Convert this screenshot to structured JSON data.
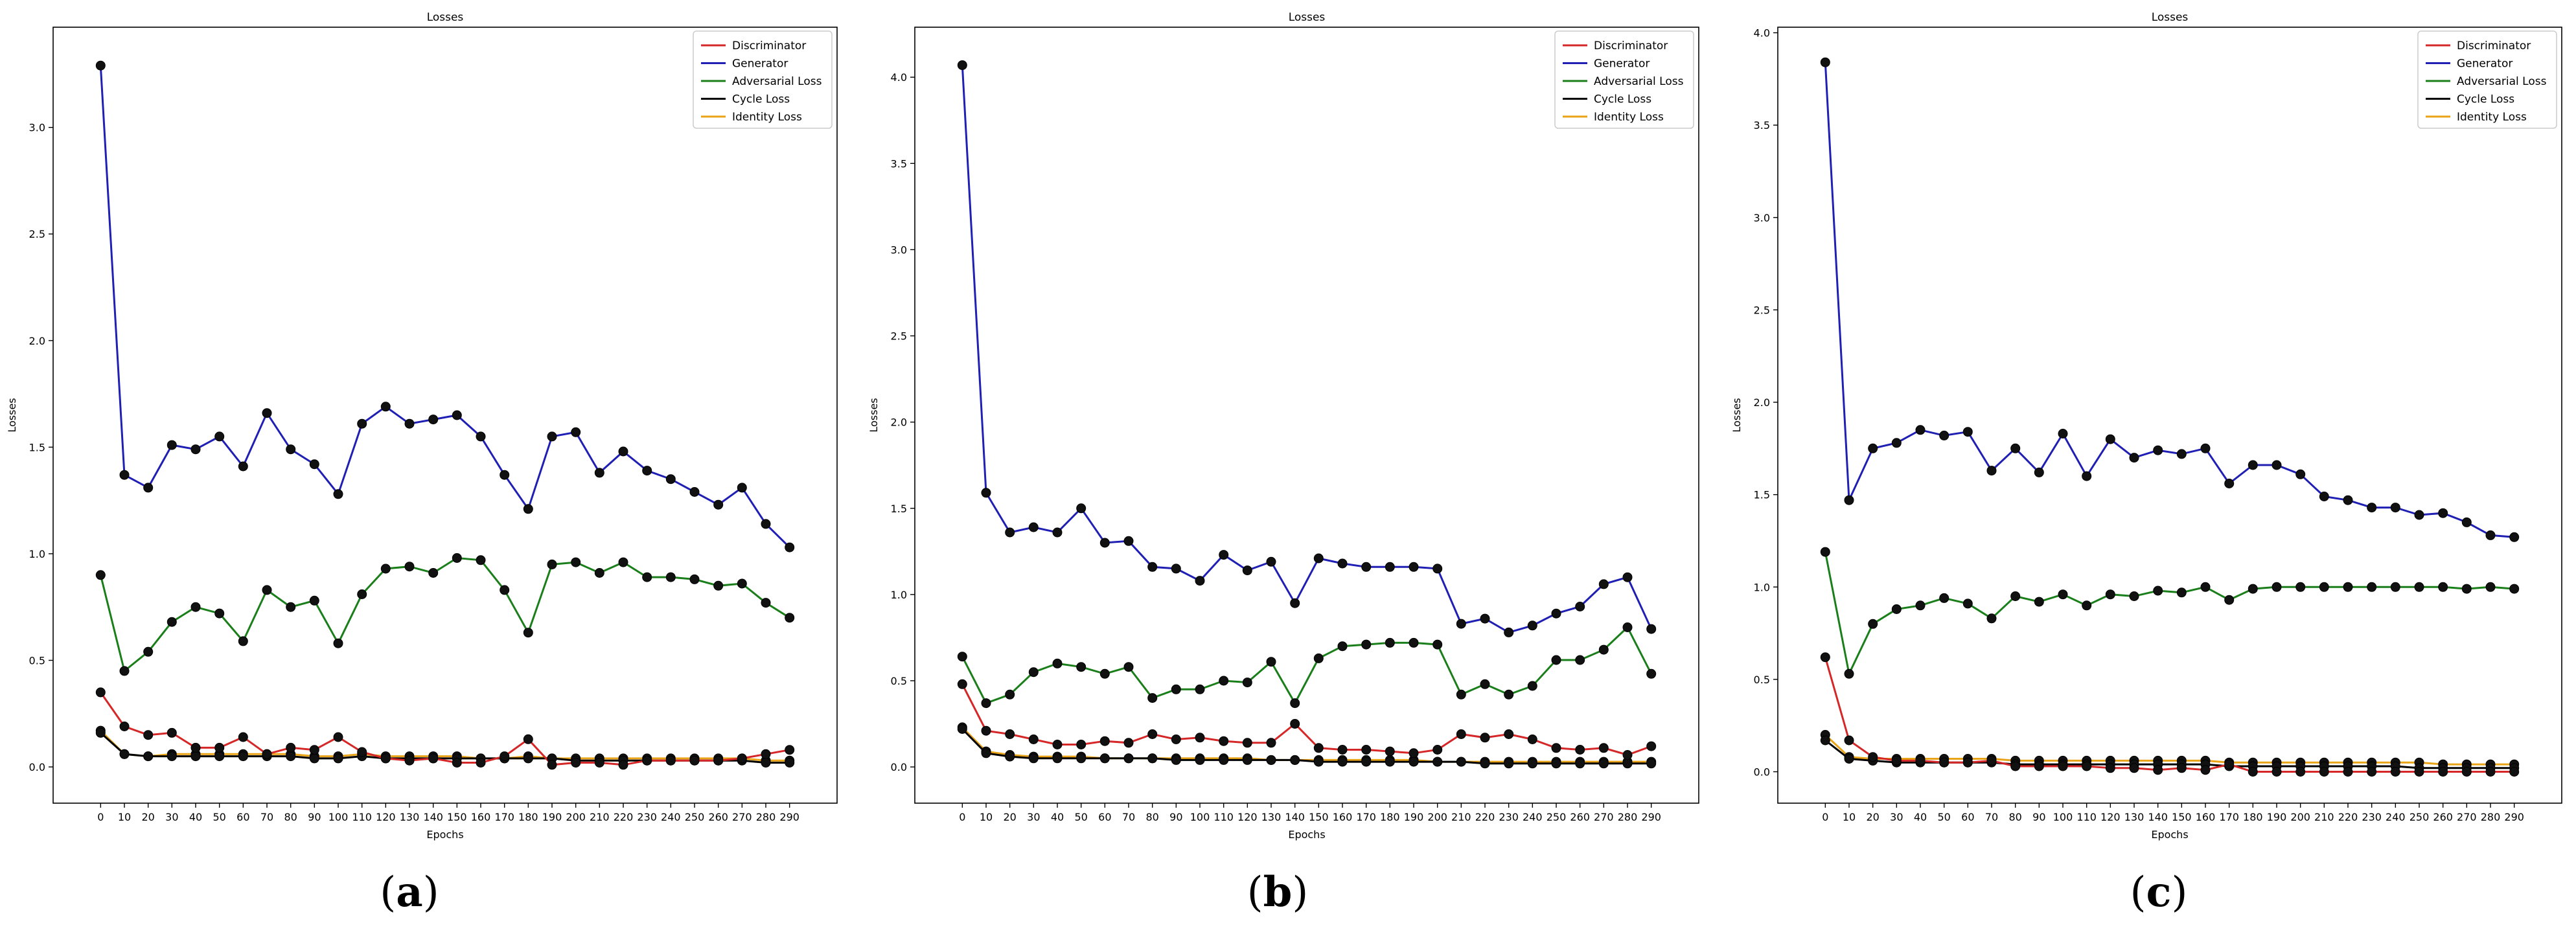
{
  "captions": [
    "(a)",
    "(b)",
    "(c)"
  ],
  "caption_letters": [
    "a",
    "b",
    "c"
  ],
  "legend_entries": [
    "Discriminator",
    "Generator",
    "Adversarial Loss",
    "Cycle Loss",
    "Identity Loss"
  ],
  "chart_data": [
    {
      "type": "line",
      "title": "Losses",
      "xlabel": "Epochs",
      "ylabel": "Losses",
      "legend": "top-right",
      "grid": false,
      "x": [
        0,
        10,
        20,
        30,
        40,
        50,
        60,
        70,
        80,
        90,
        100,
        110,
        120,
        130,
        140,
        150,
        160,
        170,
        180,
        190,
        200,
        210,
        220,
        230,
        240,
        250,
        260,
        270,
        280,
        290
      ],
      "xlim": [
        -20,
        310
      ],
      "ylim": [
        -0.17,
        3.47
      ],
      "yticks": [
        0.0,
        0.5,
        1.0,
        1.5,
        2.0,
        2.5,
        3.0
      ],
      "ytick_labels": [
        "0.0",
        "0.5",
        "1.0",
        "1.5",
        "2.0",
        "2.5",
        "3.0"
      ],
      "series": [
        {
          "name": "Discriminator",
          "color": "#d62728",
          "values": [
            0.35,
            0.19,
            0.15,
            0.16,
            0.09,
            0.09,
            0.14,
            0.06,
            0.09,
            0.08,
            0.14,
            0.07,
            0.04,
            0.03,
            0.04,
            0.02,
            0.02,
            0.05,
            0.13,
            0.01,
            0.02,
            0.02,
            0.01,
            0.03,
            0.03,
            0.03,
            0.03,
            0.04,
            0.06,
            0.08
          ]
        },
        {
          "name": "Generator",
          "color": "#1f1fb4",
          "values": [
            3.29,
            1.37,
            1.31,
            1.51,
            1.49,
            1.55,
            1.41,
            1.66,
            1.49,
            1.42,
            1.28,
            1.61,
            1.69,
            1.61,
            1.63,
            1.65,
            1.55,
            1.37,
            1.21,
            1.55,
            1.57,
            1.38,
            1.48,
            1.39,
            1.35,
            1.29,
            1.23,
            1.31,
            1.14,
            1.03
          ]
        },
        {
          "name": "Adversarial Loss",
          "color": "#1a7f1a",
          "values": [
            0.9,
            0.45,
            0.54,
            0.68,
            0.75,
            0.72,
            0.59,
            0.83,
            0.75,
            0.78,
            0.58,
            0.81,
            0.93,
            0.94,
            0.91,
            0.98,
            0.97,
            0.83,
            0.63,
            0.95,
            0.96,
            0.91,
            0.96,
            0.89,
            0.89,
            0.88,
            0.85,
            0.86,
            0.77,
            0.7
          ]
        },
        {
          "name": "Cycle Loss",
          "color": "#000000",
          "values": [
            0.16,
            0.06,
            0.05,
            0.05,
            0.05,
            0.05,
            0.05,
            0.05,
            0.05,
            0.04,
            0.04,
            0.05,
            0.04,
            0.04,
            0.04,
            0.04,
            0.04,
            0.04,
            0.04,
            0.04,
            0.03,
            0.03,
            0.03,
            0.03,
            0.03,
            0.03,
            0.03,
            0.03,
            0.02,
            0.02
          ]
        },
        {
          "name": "Identity Loss",
          "color": "#e8a317",
          "values": [
            0.17,
            0.06,
            0.05,
            0.06,
            0.06,
            0.06,
            0.06,
            0.06,
            0.06,
            0.05,
            0.05,
            0.06,
            0.05,
            0.05,
            0.05,
            0.05,
            0.04,
            0.04,
            0.05,
            0.04,
            0.04,
            0.04,
            0.04,
            0.04,
            0.04,
            0.04,
            0.04,
            0.04,
            0.03,
            0.03
          ]
        }
      ]
    },
    {
      "type": "line",
      "title": "Losses",
      "xlabel": "Epochs",
      "ylabel": "Losses",
      "legend": "top-right",
      "grid": false,
      "x": [
        0,
        10,
        20,
        30,
        40,
        50,
        60,
        70,
        80,
        90,
        100,
        110,
        120,
        130,
        140,
        150,
        160,
        170,
        180,
        190,
        200,
        210,
        220,
        230,
        240,
        250,
        260,
        270,
        280,
        290
      ],
      "xlim": [
        -20,
        310
      ],
      "ylim": [
        -0.21,
        4.29
      ],
      "yticks": [
        0.0,
        0.5,
        1.0,
        1.5,
        2.0,
        2.5,
        3.0,
        3.5,
        4.0
      ],
      "ytick_labels": [
        "0.0",
        "0.5",
        "1.0",
        "1.5",
        "2.0",
        "2.5",
        "3.0",
        "3.5",
        "4.0"
      ],
      "series": [
        {
          "name": "Discriminator",
          "color": "#d62728",
          "values": [
            0.48,
            0.21,
            0.19,
            0.16,
            0.13,
            0.13,
            0.15,
            0.14,
            0.19,
            0.16,
            0.17,
            0.15,
            0.14,
            0.14,
            0.25,
            0.11,
            0.1,
            0.1,
            0.09,
            0.08,
            0.1,
            0.19,
            0.17,
            0.19,
            0.16,
            0.11,
            0.1,
            0.11,
            0.07,
            0.12
          ]
        },
        {
          "name": "Generator",
          "color": "#1f1fb4",
          "values": [
            4.07,
            1.59,
            1.36,
            1.39,
            1.36,
            1.5,
            1.3,
            1.31,
            1.16,
            1.15,
            1.08,
            1.23,
            1.14,
            1.19,
            0.95,
            1.21,
            1.18,
            1.16,
            1.16,
            1.16,
            1.15,
            0.83,
            0.86,
            0.78,
            0.82,
            0.89,
            0.93,
            1.06,
            1.1,
            0.8
          ]
        },
        {
          "name": "Adversarial Loss",
          "color": "#1a7f1a",
          "values": [
            0.64,
            0.37,
            0.42,
            0.55,
            0.6,
            0.58,
            0.54,
            0.58,
            0.4,
            0.45,
            0.45,
            0.5,
            0.49,
            0.61,
            0.37,
            0.63,
            0.7,
            0.71,
            0.72,
            0.72,
            0.71,
            0.42,
            0.48,
            0.42,
            0.47,
            0.62,
            0.62,
            0.68,
            0.81,
            0.54
          ]
        },
        {
          "name": "Cycle Loss",
          "color": "#000000",
          "values": [
            0.22,
            0.08,
            0.06,
            0.05,
            0.05,
            0.05,
            0.05,
            0.05,
            0.05,
            0.04,
            0.04,
            0.04,
            0.04,
            0.04,
            0.04,
            0.03,
            0.03,
            0.03,
            0.03,
            0.03,
            0.03,
            0.03,
            0.02,
            0.02,
            0.02,
            0.02,
            0.02,
            0.02,
            0.02,
            0.02
          ]
        },
        {
          "name": "Identity Loss",
          "color": "#e8a317",
          "values": [
            0.23,
            0.09,
            0.07,
            0.06,
            0.06,
            0.06,
            0.05,
            0.05,
            0.05,
            0.05,
            0.05,
            0.05,
            0.05,
            0.04,
            0.04,
            0.04,
            0.04,
            0.04,
            0.04,
            0.04,
            0.03,
            0.03,
            0.03,
            0.03,
            0.03,
            0.03,
            0.03,
            0.03,
            0.03,
            0.03
          ]
        }
      ]
    },
    {
      "type": "line",
      "title": "Losses",
      "xlabel": "Epochs",
      "ylabel": "Losses",
      "legend": "top-right",
      "grid": false,
      "x": [
        0,
        10,
        20,
        30,
        40,
        50,
        60,
        70,
        80,
        90,
        100,
        110,
        120,
        130,
        140,
        150,
        160,
        170,
        180,
        190,
        200,
        210,
        220,
        230,
        240,
        250,
        260,
        270,
        280,
        290
      ],
      "xlim": [
        -20,
        310
      ],
      "ylim": [
        -0.17,
        4.03
      ],
      "yticks": [
        0.0,
        0.5,
        1.0,
        1.5,
        2.0,
        2.5,
        3.0,
        3.5,
        4.0
      ],
      "ytick_labels": [
        "0.0",
        "0.5",
        "1.0",
        "1.5",
        "2.0",
        "2.5",
        "3.0",
        "3.5",
        "4.0"
      ],
      "series": [
        {
          "name": "Discriminator",
          "color": "#d62728",
          "values": [
            0.62,
            0.17,
            0.08,
            0.06,
            0.06,
            0.05,
            0.05,
            0.06,
            0.03,
            0.03,
            0.03,
            0.03,
            0.02,
            0.02,
            0.01,
            0.02,
            0.01,
            0.04,
            0.0,
            0.0,
            0.0,
            0.0,
            0.0,
            0.0,
            0.0,
            0.0,
            0.0,
            0.0,
            0.0,
            0.0
          ]
        },
        {
          "name": "Generator",
          "color": "#1f1fb4",
          "values": [
            3.84,
            1.47,
            1.75,
            1.78,
            1.85,
            1.82,
            1.84,
            1.63,
            1.75,
            1.62,
            1.83,
            1.6,
            1.8,
            1.7,
            1.74,
            1.72,
            1.75,
            1.56,
            1.66,
            1.66,
            1.61,
            1.49,
            1.47,
            1.43,
            1.43,
            1.39,
            1.4,
            1.35,
            1.28,
            1.27
          ]
        },
        {
          "name": "Adversarial Loss",
          "color": "#1a7f1a",
          "values": [
            1.19,
            0.53,
            0.8,
            0.88,
            0.9,
            0.94,
            0.91,
            0.83,
            0.95,
            0.92,
            0.96,
            0.9,
            0.96,
            0.95,
            0.98,
            0.97,
            1.0,
            0.93,
            0.99,
            1.0,
            1.0,
            1.0,
            1.0,
            1.0,
            1.0,
            1.0,
            1.0,
            0.99,
            1.0,
            0.99
          ]
        },
        {
          "name": "Cycle Loss",
          "color": "#000000",
          "values": [
            0.17,
            0.07,
            0.06,
            0.05,
            0.05,
            0.05,
            0.05,
            0.05,
            0.04,
            0.04,
            0.04,
            0.04,
            0.04,
            0.04,
            0.04,
            0.04,
            0.04,
            0.03,
            0.03,
            0.03,
            0.03,
            0.03,
            0.03,
            0.03,
            0.03,
            0.02,
            0.02,
            0.02,
            0.02,
            0.02
          ]
        },
        {
          "name": "Identity Loss",
          "color": "#e8a317",
          "values": [
            0.2,
            0.08,
            0.07,
            0.07,
            0.07,
            0.07,
            0.07,
            0.07,
            0.06,
            0.06,
            0.06,
            0.06,
            0.06,
            0.06,
            0.06,
            0.06,
            0.06,
            0.05,
            0.05,
            0.05,
            0.05,
            0.05,
            0.05,
            0.05,
            0.05,
            0.05,
            0.04,
            0.04,
            0.04,
            0.04
          ]
        }
      ]
    }
  ]
}
